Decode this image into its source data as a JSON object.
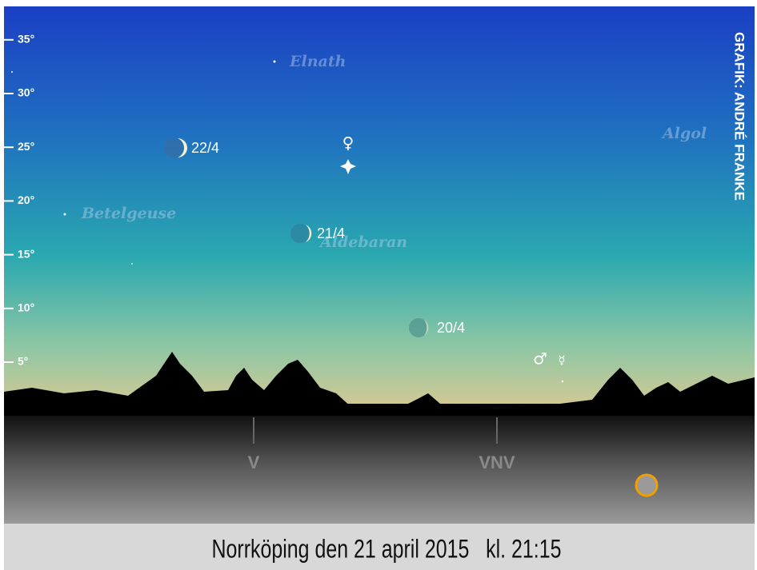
{
  "altitude_labels": [
    "5°",
    "10°",
    "15°",
    "20°",
    "25°",
    "30°",
    "35°"
  ],
  "stars": [
    "Elnath",
    "Algol",
    "Betelgeuse",
    "Aldebaran"
  ],
  "moons": [
    "22/4",
    "21/4",
    "20/4"
  ],
  "planet_symbols": {
    "venus": "♀",
    "mars": "♂",
    "mercury": "☿"
  },
  "directions": [
    "V",
    "VNV"
  ],
  "credit": "GRAFIK: ANDRÉ FRANKE",
  "caption": "Norrköping den 21 april 2015   kl. 21:15"
}
